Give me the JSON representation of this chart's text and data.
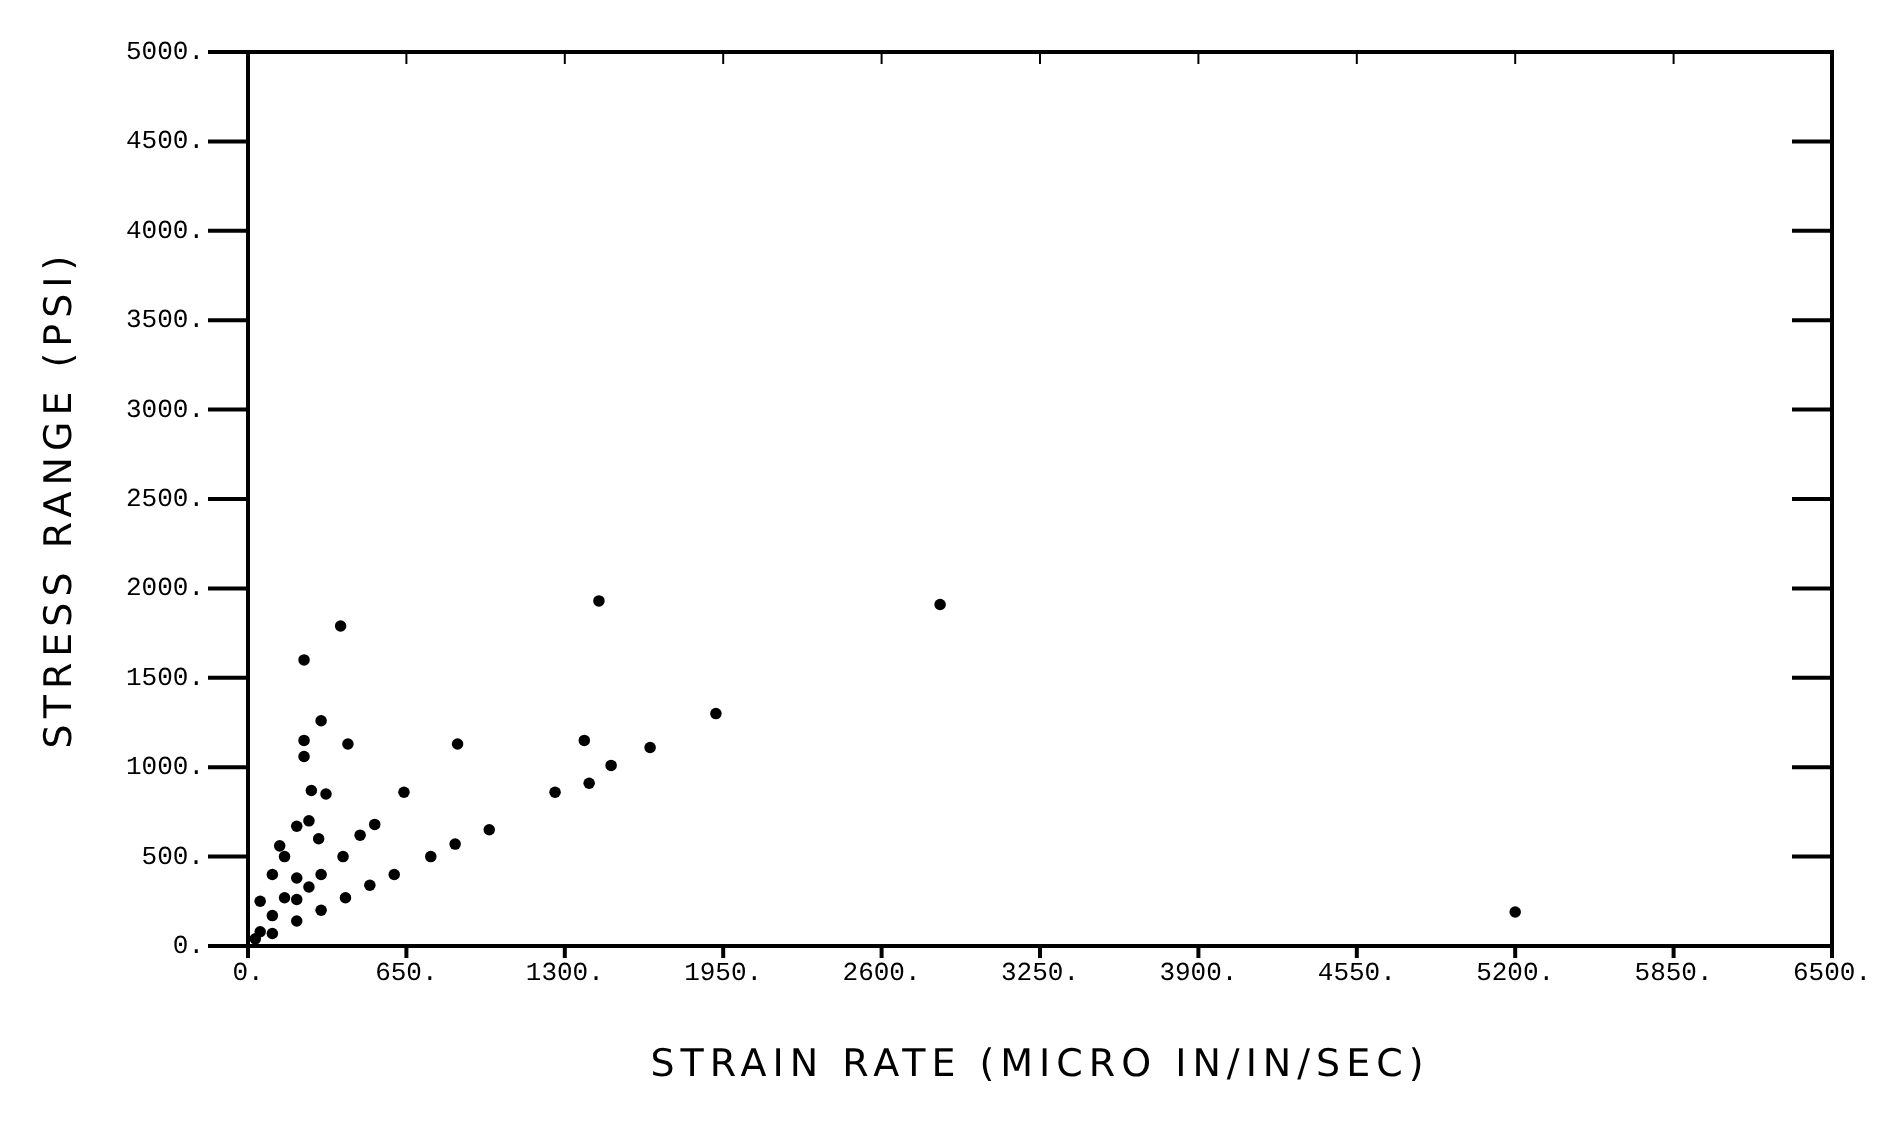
{
  "chart_data": {
    "type": "scatter",
    "xlabel": "STRAIN RATE (MICRO IN/IN/SEC)",
    "ylabel": "STRESS RANGE (PSI)",
    "x": [
      30,
      100,
      200,
      300,
      400,
      500,
      600,
      750,
      850,
      990,
      1260,
      1400,
      1490,
      1650,
      1920,
      50,
      100,
      150,
      200,
      150,
      100,
      50,
      130,
      250,
      200,
      640,
      520,
      460,
      390,
      410,
      230,
      300,
      230,
      230,
      260,
      320,
      250,
      200,
      290,
      300,
      380,
      860,
      1380,
      1440,
      2840,
      5200
    ],
    "values": [
      40,
      70,
      140,
      200,
      270,
      340,
      400,
      500,
      570,
      650,
      860,
      910,
      1010,
      1110,
      1300,
      80,
      170,
      270,
      380,
      500,
      400,
      250,
      560,
      330,
      260,
      860,
      680,
      620,
      500,
      1130,
      1600,
      1260,
      1150,
      1060,
      870,
      850,
      700,
      670,
      600,
      400,
      1790,
      1130,
      1150,
      1930,
      1910,
      190
    ],
    "color": "#000000",
    "marker": "circle",
    "xlim": [
      0,
      6500
    ],
    "xticks": [
      {
        "value": 0,
        "label": "0."
      },
      {
        "value": 650,
        "label": "650."
      },
      {
        "value": 1300,
        "label": "1300."
      },
      {
        "value": 1950,
        "label": "1950."
      },
      {
        "value": 2600,
        "label": "2600."
      },
      {
        "value": 3250,
        "label": "3250."
      },
      {
        "value": 3900,
        "label": "3900."
      },
      {
        "value": 4550,
        "label": "4550."
      },
      {
        "value": 5200,
        "label": "5200."
      },
      {
        "value": 5850,
        "label": "5850."
      },
      {
        "value": 6500,
        "label": "6500."
      }
    ],
    "ylim": [
      0,
      5000
    ],
    "yticks": [
      {
        "value": 0,
        "label": "0."
      },
      {
        "value": 500,
        "label": "500."
      },
      {
        "value": 1000,
        "label": "1000."
      },
      {
        "value": 1500,
        "label": "1500."
      },
      {
        "value": 2000,
        "label": "2000."
      },
      {
        "value": 2500,
        "label": "2500."
      },
      {
        "value": 3000,
        "label": "3000."
      },
      {
        "value": 3500,
        "label": "3500."
      },
      {
        "value": 4000,
        "label": "4000."
      },
      {
        "value": 4500,
        "label": "4500."
      },
      {
        "value": 5000,
        "label": "5000."
      }
    ],
    "grid": false
  }
}
